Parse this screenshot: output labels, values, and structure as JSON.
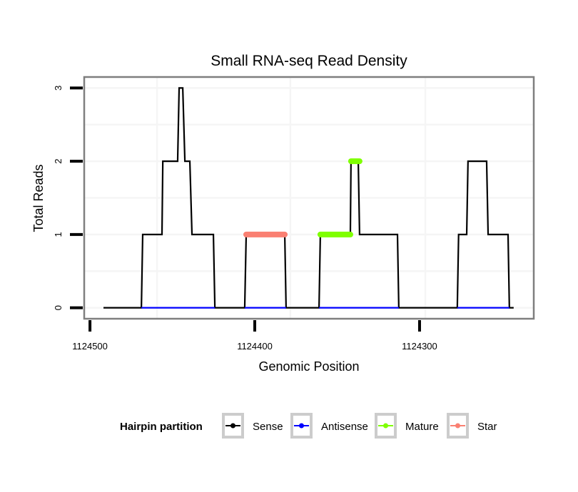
{
  "chart_data": {
    "type": "line",
    "title": "Small RNA-seq Read Density",
    "xlabel": "Genomic Position",
    "ylabel": "Total Reads",
    "x_reversed": true,
    "xlim": [
      1124503.5,
      1124230.7
    ],
    "ylim": [
      -0.15,
      3.15
    ],
    "x_ticks": [
      1124500,
      1124400,
      1124300
    ],
    "x_tick_labels": [
      "1124500",
      "1124400",
      "1124300"
    ],
    "y_ticks": [
      0,
      1,
      2,
      3
    ],
    "y_tick_labels": [
      "0",
      "1",
      "2",
      "3"
    ],
    "grid": true,
    "x_gridlines": [
      1124459.3,
      1124378.4,
      1124296.5
    ],
    "y_gridlines": [
      0,
      0.5,
      1,
      1.5,
      2,
      2.5,
      3
    ],
    "legend": {
      "title": "Hairpin partition",
      "placement": "bottom",
      "entries": [
        {
          "name": "Sense",
          "color": "#000000"
        },
        {
          "name": "Antisense",
          "color": "#0000ff"
        },
        {
          "name": "Mature",
          "color": "#7fff00"
        },
        {
          "name": "Star",
          "color": "#fa8072"
        }
      ]
    },
    "series": [
      {
        "name": "Sense",
        "color": "#000000",
        "points": [
          [
            1124491.8,
            0
          ],
          [
            1124468.8,
            0
          ],
          [
            1124468.0,
            1
          ],
          [
            1124456.3,
            1
          ],
          [
            1124455.8,
            2
          ],
          [
            1124446.8,
            2
          ],
          [
            1124445.9,
            3
          ],
          [
            1124443.7,
            3
          ],
          [
            1124442.4,
            2
          ],
          [
            1124439.4,
            2
          ],
          [
            1124438.1,
            1
          ],
          [
            1124425.1,
            1
          ],
          [
            1124424.2,
            0
          ],
          [
            1124406.1,
            0
          ],
          [
            1124405.2,
            1
          ],
          [
            1124381.8,
            1
          ],
          [
            1124381.0,
            0
          ],
          [
            1124361.0,
            0
          ],
          [
            1124360.2,
            1
          ],
          [
            1124342.0,
            1
          ],
          [
            1124341.6,
            2
          ],
          [
            1124337.2,
            2
          ],
          [
            1124336.4,
            1
          ],
          [
            1124313.4,
            1
          ],
          [
            1124312.6,
            0
          ],
          [
            1124277.1,
            0
          ],
          [
            1124276.3,
            1
          ],
          [
            1124271.4,
            1
          ],
          [
            1124270.6,
            2
          ],
          [
            1124259.3,
            2
          ],
          [
            1124258.4,
            1
          ],
          [
            1124246.3,
            1
          ],
          [
            1124245.5,
            0
          ],
          [
            1124242.9,
            0
          ]
        ]
      },
      {
        "name": "Antisense",
        "color": "#0000ff",
        "segments": [
          [
            [
              1124468.8,
              0
            ],
            [
              1124424.2,
              0
            ]
          ],
          [
            [
              1124406.1,
              0
            ],
            [
              1124381.0,
              0
            ]
          ],
          [
            [
              1124361.0,
              0
            ],
            [
              1124312.6,
              0
            ]
          ],
          [
            [
              1124277.1,
              0
            ],
            [
              1124245.5,
              0
            ]
          ]
        ]
      },
      {
        "name": "Mature",
        "color": "#7fff00",
        "segments": [
          [
            [
              1124360.2,
              1
            ],
            [
              1124342.0,
              1
            ]
          ],
          [
            [
              1124341.6,
              2
            ],
            [
              1124336.4,
              2
            ]
          ]
        ]
      },
      {
        "name": "Star",
        "color": "#fa8072",
        "segments": [
          [
            [
              1124405.2,
              1
            ],
            [
              1124381.8,
              1
            ]
          ]
        ]
      }
    ]
  }
}
